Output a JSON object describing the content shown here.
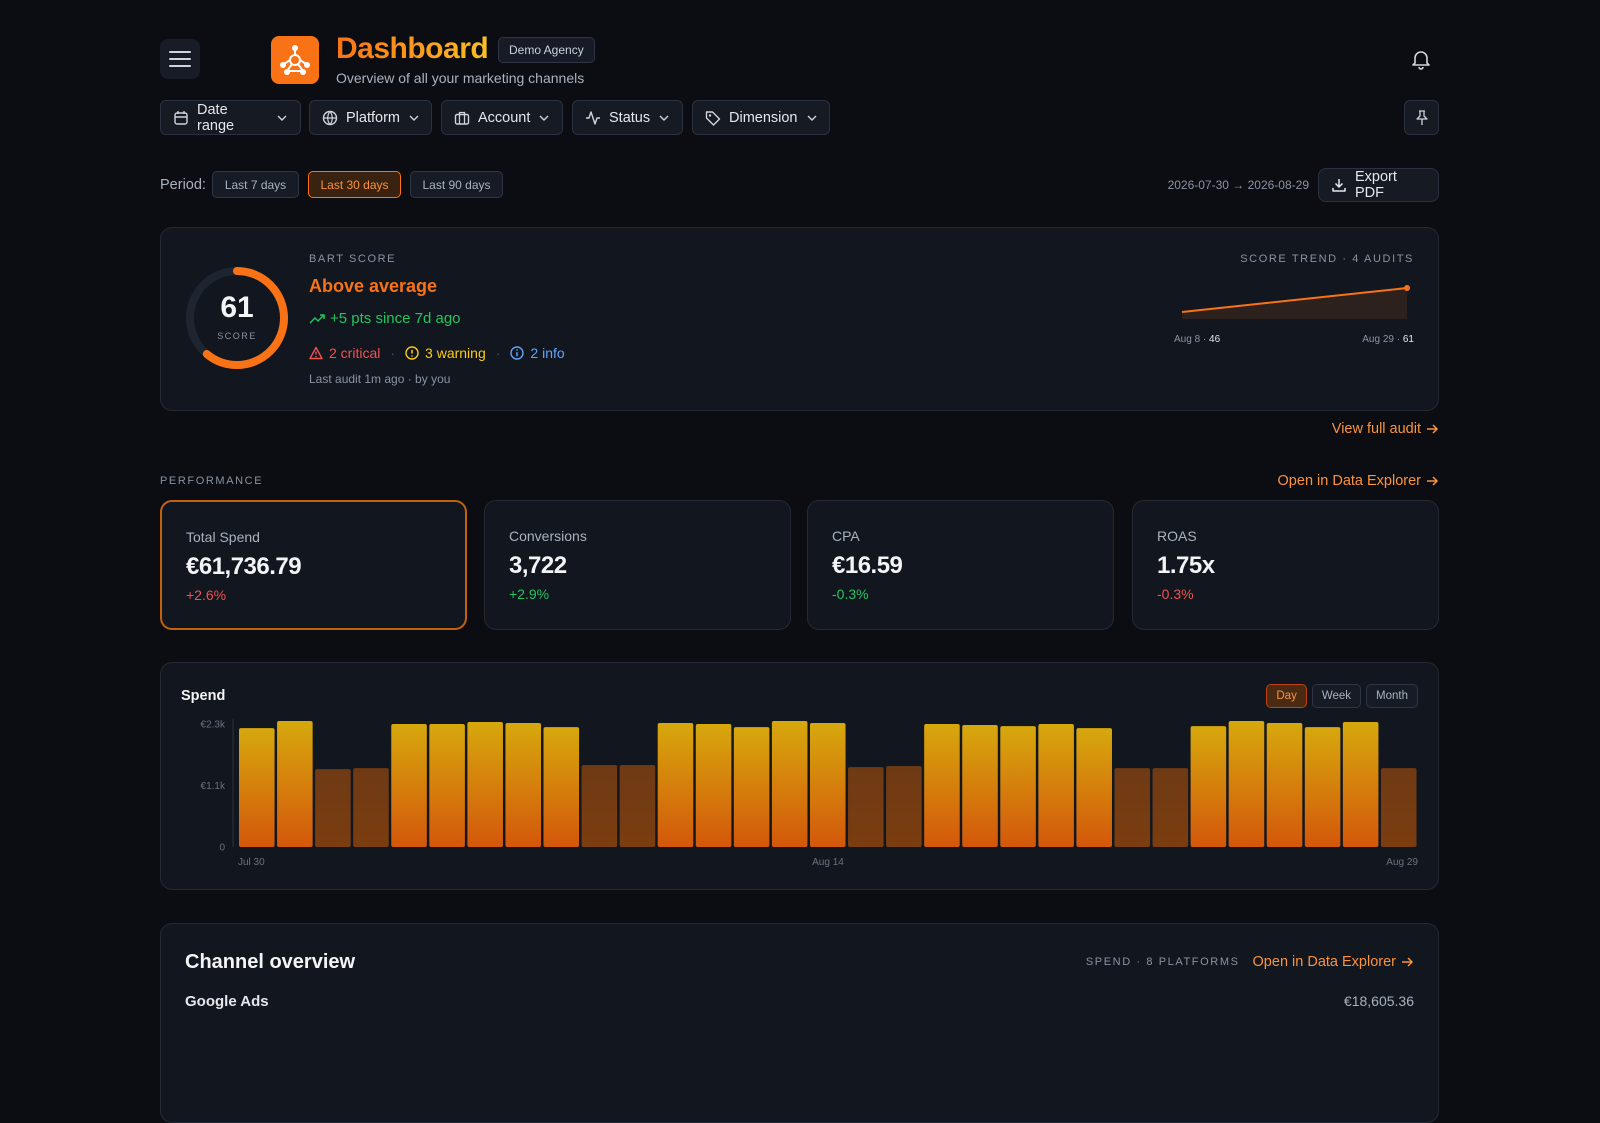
{
  "header": {
    "title": "Dashboard",
    "badge": "Demo Agency",
    "subtitle": "Overview of all your marketing channels"
  },
  "filters": [
    "Date range",
    "Platform",
    "Account",
    "Status",
    "Dimension"
  ],
  "period": {
    "label": "Period:",
    "options": [
      "Last 7 days",
      "Last 30 days",
      "Last 90 days"
    ],
    "active": 1,
    "date_range": "2026-07-30 → 2026-08-29",
    "export": "Export PDF"
  },
  "score": {
    "label": "BART SCORE",
    "value": 61,
    "range": [
      0,
      100
    ],
    "unit": "SCORE",
    "rating": "Above average",
    "delta": "+5 pts since 7d ago",
    "issues": [
      {
        "text": "2 critical",
        "color": "#f05252"
      },
      {
        "text": "3 warning",
        "color": "#facc15"
      },
      {
        "text": "2 info",
        "color": "#60a5fa"
      }
    ],
    "sep": "·",
    "last_audit": "Last audit 1m ago · by you",
    "link": "View full audit"
  },
  "performance": {
    "label": "PERFORMANCE",
    "link": "Open in Data Explorer",
    "cards": [
      {
        "label": "Total Spend",
        "value": "€61,736.79",
        "change": "+2.6%",
        "color": "#f05252"
      },
      {
        "label": "Conversions",
        "value": "3,722",
        "change": "+2.9%",
        "color": "#22c55e"
      },
      {
        "label": "CPA",
        "value": "€16.59",
        "change": "-0.3%",
        "color": "#22c55e"
      },
      {
        "label": "ROAS",
        "value": "1.75x",
        "change": "-0.3%",
        "color": "#f05252"
      }
    ],
    "active": 0
  },
  "chart_data": [
    {
      "type": "bar",
      "title": "Spend",
      "categories": [
        "Jul 30",
        null,
        null,
        null,
        null,
        null,
        null,
        null,
        null,
        null,
        null,
        null,
        null,
        null,
        null,
        "Aug 14",
        null,
        null,
        null,
        null,
        null,
        null,
        null,
        null,
        null,
        null,
        null,
        null,
        null,
        null,
        "Aug 29"
      ],
      "values": [
        2223,
        2357,
        1457,
        1476,
        2300,
        2300,
        2338,
        2319,
        2243,
        1533,
        1533,
        2319,
        2300,
        2243,
        2357,
        2319,
        1495,
        1514,
        2300,
        2281,
        2262,
        2300,
        2223,
        1476,
        1476,
        2262,
        2357,
        2319,
        2243,
        2338,
        1476
      ],
      "colors": [
        [
          "#d6a80d",
          "#d4570b"
        ],
        [
          "#d6a80d",
          "#d4570b"
        ],
        [
          "#6e3a14",
          "#7b3d10"
        ],
        [
          "#6e3a14",
          "#7b3d10"
        ],
        [
          "#d6a80d",
          "#d4570b"
        ],
        [
          "#d6a80d",
          "#d4570b"
        ],
        [
          "#d6a80d",
          "#d4570b"
        ],
        [
          "#d6a80d",
          "#d4570b"
        ],
        [
          "#d6a80d",
          "#d4570b"
        ],
        [
          "#6e3a14",
          "#7b3d10"
        ],
        [
          "#6e3a14",
          "#7b3d10"
        ],
        [
          "#d6a80d",
          "#d4570b"
        ],
        [
          "#d6a80d",
          "#d4570b"
        ],
        [
          "#d6a80d",
          "#d4570b"
        ],
        [
          "#d6a80d",
          "#d4570b"
        ],
        [
          "#d6a80d",
          "#d4570b"
        ],
        [
          "#6e3a14",
          "#7b3d10"
        ],
        [
          "#6e3a14",
          "#7b3d10"
        ],
        [
          "#d6a80d",
          "#d4570b"
        ],
        [
          "#d6a80d",
          "#d4570b"
        ],
        [
          "#d6a80d",
          "#d4570b"
        ],
        [
          "#d6a80d",
          "#d4570b"
        ],
        [
          "#d6a80d",
          "#d4570b"
        ],
        [
          "#6e3a14",
          "#7b3d10"
        ],
        [
          "#6e3a14",
          "#7b3d10"
        ],
        [
          "#d6a80d",
          "#d4570b"
        ],
        [
          "#d6a80d",
          "#d4570b"
        ],
        [
          "#d6a80d",
          "#d4570b"
        ],
        [
          "#d6a80d",
          "#d4570b"
        ],
        [
          "#d6a80d",
          "#d4570b"
        ],
        [
          "#6e3a14",
          "#7b3d10"
        ]
      ],
      "ylim": [
        0,
        2400
      ],
      "yticks": [
        0,
        {
          "value": 1150,
          "label": "€1.1k"
        },
        {
          "value": 2300,
          "label": "€2.3k"
        }
      ],
      "toggle": [
        "Day",
        "Week",
        "Month"
      ],
      "toggle_active": 0
    },
    {
      "type": "line",
      "title": "SCORE TREND · 4 AUDITS",
      "categories": [
        "Aug 8",
        "Aug 29"
      ],
      "values": [
        46,
        61
      ],
      "color": "#f97316",
      "sep": "·"
    }
  ],
  "channels": {
    "title": "Channel overview",
    "meta": "SPEND · 8 PLATFORMS",
    "link": "Open in Data Explorer",
    "rows": [
      {
        "name": "Google Ads",
        "spend": "€18,605.36"
      }
    ]
  }
}
